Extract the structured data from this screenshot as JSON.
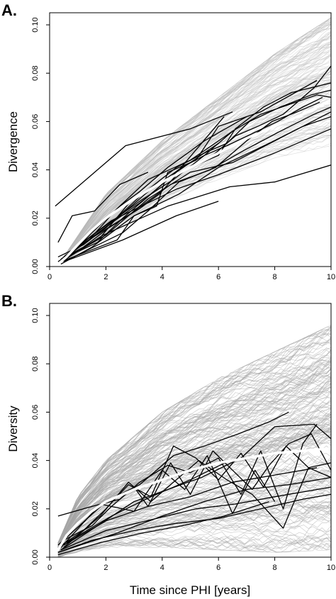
{
  "chart_data": [
    {
      "type": "line",
      "panel_label": "A.",
      "title": "",
      "xlabel": "",
      "ylabel": "Divergence",
      "xlim": [
        0,
        10
      ],
      "ylim": [
        0,
        0.105
      ],
      "x_ticks": [
        0,
        2,
        4,
        6,
        8,
        10
      ],
      "y_ticks": [
        0.0,
        0.02,
        0.04,
        0.06,
        0.08,
        0.1
      ],
      "x_tick_labels": [
        "0",
        "2",
        "4",
        "6",
        "8",
        "10"
      ],
      "y_tick_labels": [
        "0.00",
        "0.02",
        "0.04",
        "0.06",
        "0.08",
        "0.10"
      ],
      "grid": false,
      "colors": {
        "simulations": "#b8b8b8",
        "patients": "#000000",
        "mean": "#ffffff"
      },
      "simulation_band": {
        "x": [
          0.5,
          2,
          4,
          6,
          8,
          10
        ],
        "low": [
          0.002,
          0.012,
          0.026,
          0.036,
          0.045,
          0.05
        ],
        "high": [
          0.004,
          0.03,
          0.052,
          0.07,
          0.088,
          0.103
        ]
      },
      "mean_curve": {
        "x": [
          0.3,
          0.6,
          1,
          1.5,
          2,
          3,
          4,
          5,
          6,
          7,
          8,
          9,
          10
        ],
        "y": [
          0.001,
          0.004,
          0.009,
          0.015,
          0.02,
          0.028,
          0.035,
          0.041,
          0.047,
          0.053,
          0.058,
          0.063,
          0.069
        ]
      },
      "series": [
        {
          "x": [
            0.2,
            1.6,
            2.7,
            5.0,
            6.5
          ],
          "y": [
            0.025,
            0.039,
            0.05,
            0.057,
            0.064
          ]
        },
        {
          "x": [
            0.3,
            0.8,
            1.6,
            2.5,
            3.5
          ],
          "y": [
            0.01,
            0.021,
            0.023,
            0.034,
            0.039
          ]
        },
        {
          "x": [
            0.3,
            1.2,
            2.2,
            3.4,
            4.5,
            6.0
          ],
          "y": [
            0.004,
            0.009,
            0.018,
            0.028,
            0.039,
            0.051
          ]
        },
        {
          "x": [
            0.4,
            1.4,
            2.4,
            3.5,
            5.0,
            6.5
          ],
          "y": [
            0.003,
            0.011,
            0.024,
            0.036,
            0.044,
            0.056
          ]
        },
        {
          "x": [
            0.5,
            1.5,
            2.5,
            3.2,
            4.2,
            5.5,
            7.0
          ],
          "y": [
            0.002,
            0.014,
            0.025,
            0.031,
            0.041,
            0.052,
            0.062
          ]
        },
        {
          "x": [
            0.6,
            1.7,
            2.6,
            3.6,
            4.6,
            6.2
          ],
          "y": [
            0.004,
            0.01,
            0.02,
            0.03,
            0.04,
            0.062
          ]
        },
        {
          "x": [
            0.4,
            2.4,
            3.0,
            3.8,
            4.2,
            5.2,
            6.0,
            7.5,
            9.5
          ],
          "y": [
            0.002,
            0.011,
            0.021,
            0.025,
            0.039,
            0.044,
            0.058,
            0.064,
            0.077
          ]
        },
        {
          "x": [
            0.5,
            1.8,
            2.8,
            3.8,
            4.8,
            6.0,
            6.6,
            7.6,
            8.6,
            10.0
          ],
          "y": [
            0.003,
            0.012,
            0.026,
            0.034,
            0.04,
            0.046,
            0.057,
            0.066,
            0.072,
            0.076
          ]
        },
        {
          "x": [
            0.3,
            2.0,
            3.3,
            4.5,
            5.5,
            6.3,
            7.1,
            8.2,
            9.3,
            10.0
          ],
          "y": [
            0.002,
            0.016,
            0.03,
            0.041,
            0.047,
            0.051,
            0.06,
            0.066,
            0.071,
            0.073
          ]
        },
        {
          "x": [
            0.4,
            1.5,
            3.0,
            4.6,
            6.0,
            7.8,
            9.0,
            10.0
          ],
          "y": [
            0.001,
            0.008,
            0.021,
            0.03,
            0.041,
            0.051,
            0.058,
            0.062
          ]
        },
        {
          "x": [
            0.5,
            2.0,
            3.5,
            5.0,
            6.5,
            8.0,
            9.0,
            10.0
          ],
          "y": [
            0.003,
            0.013,
            0.028,
            0.039,
            0.043,
            0.052,
            0.058,
            0.064
          ]
        },
        {
          "x": [
            0.6,
            2.4,
            3.6,
            4.7,
            5.5,
            6.3,
            7.2,
            8.1,
            9.0,
            9.7
          ],
          "y": [
            0.004,
            0.02,
            0.032,
            0.041,
            0.046,
            0.05,
            0.055,
            0.06,
            0.066,
            0.07
          ]
        },
        {
          "x": [
            0.4,
            1.2,
            2.1,
            3.2,
            3.9,
            4.6,
            5.6,
            6.6,
            7.4,
            8.3,
            9.4,
            10.0
          ],
          "y": [
            0.003,
            0.008,
            0.016,
            0.024,
            0.03,
            0.039,
            0.044,
            0.054,
            0.058,
            0.063,
            0.074,
            0.083
          ]
        },
        {
          "x": [
            0.7,
            2.9,
            4.3,
            5.7,
            6.9,
            8.2,
            9.4,
            10.0
          ],
          "y": [
            0.006,
            0.022,
            0.034,
            0.04,
            0.048,
            0.056,
            0.063,
            0.066
          ]
        },
        {
          "x": [
            0.5,
            2.6,
            3.5,
            4.6,
            5.9,
            7.0,
            7.9,
            8.8,
            9.6
          ],
          "y": [
            0.002,
            0.014,
            0.023,
            0.035,
            0.041,
            0.052,
            0.06,
            0.064,
            0.068
          ]
        },
        {
          "x": [
            0.4,
            2.0,
            3.2,
            4.4,
            5.5,
            6.5,
            7.5,
            8.5,
            9.5,
            10.0
          ],
          "y": [
            0.003,
            0.017,
            0.027,
            0.036,
            0.046,
            0.056,
            0.063,
            0.067,
            0.071,
            0.07
          ]
        },
        {
          "x": [
            0.5,
            2.2,
            4.5,
            6.0,
            8.0,
            10.0
          ],
          "y": [
            0.004,
            0.019,
            0.032,
            0.038,
            0.047,
            0.057
          ]
        },
        {
          "x": [
            0.3,
            1.9,
            4.2,
            6.4,
            8.0,
            10.0
          ],
          "y": [
            0.001,
            0.013,
            0.025,
            0.033,
            0.035,
            0.042
          ]
        },
        {
          "x": [
            0.5,
            2.6,
            4.5,
            6.0
          ],
          "y": [
            0.002,
            0.011,
            0.021,
            0.027
          ]
        }
      ]
    },
    {
      "type": "line",
      "panel_label": "B.",
      "title": "",
      "xlabel": "Time since PHI [years]",
      "ylabel": "Diversity",
      "xlim": [
        0,
        10
      ],
      "ylim": [
        0,
        0.105
      ],
      "x_ticks": [
        0,
        2,
        4,
        6,
        8,
        10
      ],
      "y_ticks": [
        0.0,
        0.02,
        0.04,
        0.06,
        0.08,
        0.1
      ],
      "x_tick_labels": [
        "0",
        "2",
        "4",
        "6",
        "8",
        "10"
      ],
      "y_tick_labels": [
        "0.00",
        "0.02",
        "0.04",
        "0.06",
        "0.08",
        "0.10"
      ],
      "grid": false,
      "colors": {
        "simulations": "#a6a6a6",
        "patients": "#000000",
        "mean": "#ffffff"
      },
      "simulation_band": {
        "x": [
          0.3,
          1,
          2,
          4,
          6,
          8,
          10
        ],
        "low": [
          0.0,
          0.002,
          0.004,
          0.004,
          0.003,
          0.002,
          0.003
        ],
        "high": [
          0.006,
          0.025,
          0.04,
          0.06,
          0.074,
          0.085,
          0.096
        ]
      },
      "mean_curve": {
        "x": [
          0.3,
          0.6,
          1,
          1.5,
          2,
          3,
          4,
          5,
          6,
          7,
          8,
          9,
          10
        ],
        "y": [
          0.003,
          0.009,
          0.014,
          0.019,
          0.023,
          0.028,
          0.032,
          0.036,
          0.039,
          0.041,
          0.043,
          0.044,
          0.045
        ]
      },
      "series": [
        {
          "x": [
            0.3,
            2.0,
            3.2,
            4.4,
            5.5,
            6.7,
            7.8,
            8.5
          ],
          "y": [
            0.005,
            0.023,
            0.03,
            0.042,
            0.046,
            0.051,
            0.056,
            0.06
          ]
        },
        {
          "x": [
            0.3,
            1.5,
            2.5,
            3.2,
            4.2,
            5.0,
            6.0,
            6.8,
            7.5,
            8.3,
            9.0,
            9.5
          ],
          "y": [
            0.017,
            0.021,
            0.024,
            0.031,
            0.038,
            0.035,
            0.041,
            0.026,
            0.044,
            0.02,
            0.047,
            0.055
          ]
        },
        {
          "x": [
            0.4,
            1.8,
            3.0,
            4.0,
            4.8,
            5.6,
            6.5,
            7.3,
            8.0
          ],
          "y": [
            0.004,
            0.022,
            0.019,
            0.036,
            0.028,
            0.042,
            0.018,
            0.036,
            0.023
          ]
        },
        {
          "x": [
            0.5,
            1.5,
            2.2,
            3.0,
            3.5,
            4.3,
            5.0,
            5.8,
            6.5,
            7.2,
            7.8,
            8.5,
            9.3,
            10.0
          ],
          "y": [
            0.007,
            0.013,
            0.021,
            0.029,
            0.021,
            0.039,
            0.026,
            0.044,
            0.036,
            0.028,
            0.038,
            0.047,
            0.051,
            0.036
          ]
        },
        {
          "x": [
            0.3,
            1.2,
            2.0,
            2.8,
            3.6,
            4.4,
            5.2,
            6.0,
            6.8,
            7.6,
            8.4,
            9.2,
            10.0
          ],
          "y": [
            0.004,
            0.011,
            0.02,
            0.03,
            0.025,
            0.046,
            0.041,
            0.032,
            0.043,
            0.029,
            0.046,
            0.037,
            0.033
          ]
        },
        {
          "x": [
            0.5,
            1.8,
            2.8,
            3.6,
            4.4,
            5.3,
            6.3,
            7.2,
            8.3,
            9.2,
            10.0
          ],
          "y": [
            0.004,
            0.017,
            0.031,
            0.023,
            0.031,
            0.04,
            0.032,
            0.026,
            0.012,
            0.037,
            0.039
          ]
        },
        {
          "x": [
            0.4,
            1.7,
            3.0,
            4.2,
            5.4,
            6.8,
            8.0,
            9.4,
            10.0
          ],
          "y": [
            0.003,
            0.013,
            0.023,
            0.028,
            0.033,
            0.041,
            0.054,
            0.055,
            0.049
          ]
        },
        {
          "x": [
            0.3,
            2.4,
            4.0,
            5.5,
            7.0,
            8.5,
            10.0
          ],
          "y": [
            0.002,
            0.01,
            0.017,
            0.023,
            0.028,
            0.03,
            0.033
          ]
        },
        {
          "x": [
            0.4,
            2.0,
            3.8,
            5.2,
            6.6,
            8.0,
            10.0
          ],
          "y": [
            0.003,
            0.011,
            0.016,
            0.02,
            0.022,
            0.025,
            0.029
          ]
        },
        {
          "x": [
            0.3,
            1.5,
            3.0,
            4.5,
            6.0,
            7.5,
            9.0,
            10.0
          ],
          "y": [
            0.002,
            0.007,
            0.011,
            0.014,
            0.016,
            0.02,
            0.024,
            0.026
          ]
        },
        {
          "x": [
            0.5,
            2.0,
            3.5,
            5.0,
            6.5,
            8.0,
            9.5
          ],
          "y": [
            0.005,
            0.015,
            0.021,
            0.025,
            0.031,
            0.034,
            0.037
          ]
        },
        {
          "x": [
            0.3,
            1.8,
            3.3,
            4.7,
            6.2,
            7.8
          ],
          "y": [
            0.001,
            0.006,
            0.01,
            0.013,
            0.017,
            0.023
          ]
        },
        {
          "x": [
            0.6,
            2.2,
            3.6,
            5.0,
            6.4
          ],
          "y": [
            0.006,
            0.017,
            0.025,
            0.032,
            0.04
          ]
        }
      ]
    }
  ]
}
